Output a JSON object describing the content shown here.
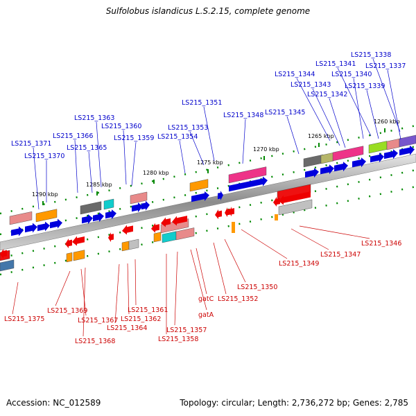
{
  "title": "Sulfolobus islandicus L.S.2.15, complete genome",
  "footer": {
    "accession": "Accession: NC_012589",
    "stats": "Topology: circular; Length: 2,736,272 bp; Genes: 2,785"
  },
  "colors": {
    "forward_label": "#0000cc",
    "reverse_label": "#cc0000",
    "backbone": "#9a9a9a",
    "tick": "#008800"
  },
  "kbp_ticks": [
    "1260 kbp",
    "1265 kbp",
    "1270 kbp",
    "1275 kbp",
    "1280 kbp",
    "1285 kbp",
    "1290 kbp"
  ],
  "forward_genes": [
    "LS215_1338",
    "LS215_1341",
    "LS215_1337",
    "LS215_1344",
    "LS215_1340",
    "LS215_1343",
    "LS215_1339",
    "LS215_1342",
    "LS215_1351",
    "LS215_1345",
    "LS215_1348",
    "LS215_1363",
    "LS215_1360",
    "LS215_1353",
    "LS215_1366",
    "LS215_1359",
    "LS215_1354",
    "LS215_1371",
    "LS215_1365",
    "LS215_1370"
  ],
  "reverse_genes": [
    "LS215_1346",
    "LS215_1347",
    "LS215_1349",
    "LS215_1350",
    "LS215_1352",
    "gatC",
    "LS215_1361",
    "LS215_1369",
    "gatA",
    "LS215_1362",
    "LS215_1367",
    "LS215_1375",
    "LS215_1364",
    "LS215_1357",
    "LS215_1368",
    "LS215_1358"
  ]
}
